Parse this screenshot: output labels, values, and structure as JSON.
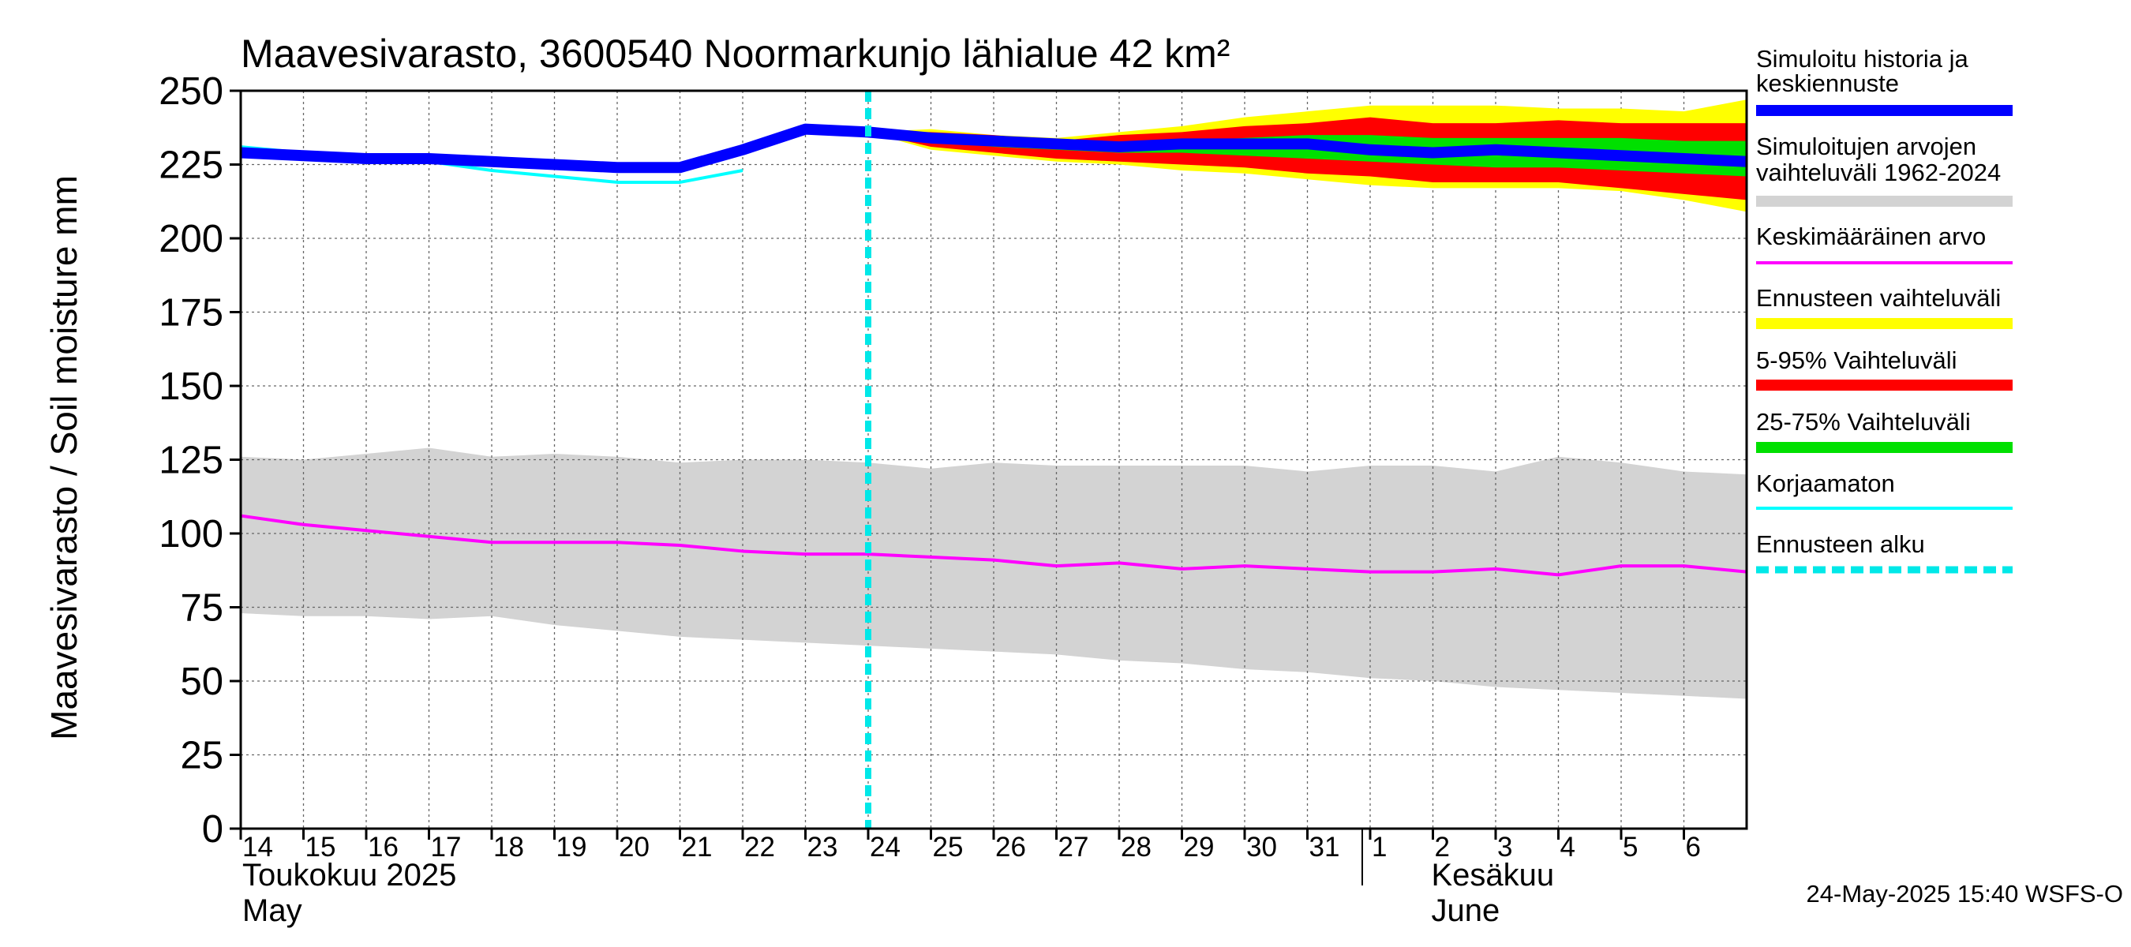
{
  "chart_data": {
    "type": "area",
    "title": "Maavesivarasto, 3600540 Noormarkunjo lähialue 42 km²",
    "ylabel": "Maavesivarasto / Soil moisture   mm",
    "ylim": [
      0,
      250
    ],
    "yticks": [
      0,
      25,
      50,
      75,
      100,
      125,
      150,
      175,
      200,
      225,
      250
    ],
    "grid": true,
    "legend_position": "right",
    "x_day_labels": [
      "14",
      "15",
      "16",
      "17",
      "18",
      "19",
      "20",
      "21",
      "22",
      "23",
      "24",
      "25",
      "26",
      "27",
      "28",
      "29",
      "30",
      "31",
      "1",
      "2",
      "3",
      "4",
      "5",
      "6"
    ],
    "month_labels": [
      {
        "fi": "Toukokuu  2025",
        "en": "May"
      },
      {
        "fi": "Kesäkuu",
        "en": "June"
      }
    ],
    "x_start": "2025-05-14",
    "x_end": "2025-06-07",
    "forecast_start": "2025-05-24",
    "historical_range": {
      "name": "Simuloitujen arvojen vaihteluväli 1962-2024",
      "color": "#d3d3d3",
      "x": [
        "2025-05-14",
        "2025-05-15",
        "2025-05-16",
        "2025-05-17",
        "2025-05-18",
        "2025-05-19",
        "2025-05-20",
        "2025-05-21",
        "2025-05-22",
        "2025-05-23",
        "2025-05-24",
        "2025-05-25",
        "2025-05-26",
        "2025-05-27",
        "2025-05-28",
        "2025-05-29",
        "2025-05-30",
        "2025-05-31",
        "2025-06-01",
        "2025-06-02",
        "2025-06-03",
        "2025-06-04",
        "2025-06-05",
        "2025-06-06",
        "2025-06-07"
      ],
      "upper": [
        126,
        125,
        127,
        129,
        126,
        127,
        126,
        124,
        125,
        125,
        124,
        122,
        124,
        123,
        123,
        123,
        123,
        121,
        123,
        123,
        121,
        126,
        124,
        121,
        120
      ],
      "lower": [
        73,
        72,
        72,
        71,
        72,
        69,
        67,
        65,
        64,
        63,
        62,
        61,
        60,
        59,
        57,
        56,
        54,
        53,
        51,
        50,
        48,
        47,
        46,
        45,
        44
      ]
    },
    "mean": {
      "name": "Keskimääräinen arvo",
      "color": "#ff00ff",
      "x": [
        "2025-05-14",
        "2025-05-15",
        "2025-05-16",
        "2025-05-17",
        "2025-05-18",
        "2025-05-19",
        "2025-05-20",
        "2025-05-21",
        "2025-05-22",
        "2025-05-23",
        "2025-05-24",
        "2025-05-25",
        "2025-05-26",
        "2025-05-27",
        "2025-05-28",
        "2025-05-29",
        "2025-05-30",
        "2025-05-31",
        "2025-06-01",
        "2025-06-02",
        "2025-06-03",
        "2025-06-04",
        "2025-06-05",
        "2025-06-06",
        "2025-06-07"
      ],
      "values": [
        106,
        103,
        101,
        99,
        97,
        97,
        97,
        96,
        94,
        93,
        93,
        92,
        91,
        89,
        90,
        88,
        89,
        88,
        87,
        87,
        88,
        86,
        89,
        89,
        87
      ]
    },
    "forecast_full_range": {
      "name": "Ennusteen vaihteluväli",
      "color": "#ffff00",
      "x": [
        "2025-05-24",
        "2025-05-25",
        "2025-05-26",
        "2025-05-27",
        "2025-05-28",
        "2025-05-29",
        "2025-05-30",
        "2025-05-31",
        "2025-06-01",
        "2025-06-02",
        "2025-06-03",
        "2025-06-04",
        "2025-06-05",
        "2025-06-06",
        "2025-06-07"
      ],
      "upper": [
        236,
        237,
        235,
        234,
        236,
        238,
        241,
        243,
        245,
        245,
        245,
        244,
        244,
        243,
        247
      ],
      "lower": [
        236,
        230,
        228,
        226,
        225,
        223,
        222,
        220,
        218,
        217,
        217,
        217,
        216,
        213,
        209
      ]
    },
    "forecast_5_95": {
      "name": "5-95% Vaihteluväli",
      "color": "#ff0000",
      "x": [
        "2025-05-24",
        "2025-05-25",
        "2025-05-26",
        "2025-05-27",
        "2025-05-28",
        "2025-05-29",
        "2025-05-30",
        "2025-05-31",
        "2025-06-01",
        "2025-06-02",
        "2025-06-03",
        "2025-06-04",
        "2025-06-05",
        "2025-06-06",
        "2025-06-07"
      ],
      "upper": [
        236,
        236,
        235,
        233,
        235,
        236,
        238,
        239,
        241,
        239,
        239,
        240,
        239,
        239,
        239
      ],
      "lower": [
        236,
        231,
        229,
        227,
        226,
        225,
        224,
        222,
        221,
        219,
        219,
        219,
        217,
        215,
        213
      ]
    },
    "forecast_25_75": {
      "name": "25-75% Vaihteluväli",
      "color": "#00e000",
      "x": [
        "2025-05-24",
        "2025-05-25",
        "2025-05-26",
        "2025-05-27",
        "2025-05-28",
        "2025-05-29",
        "2025-05-30",
        "2025-05-31",
        "2025-06-01",
        "2025-06-02",
        "2025-06-03",
        "2025-06-04",
        "2025-06-05",
        "2025-06-06",
        "2025-06-07"
      ],
      "upper": [
        236,
        235,
        233,
        232,
        232,
        233,
        234,
        235,
        235,
        234,
        234,
        234,
        234,
        233,
        233
      ],
      "lower": [
        236,
        233,
        231,
        230,
        229,
        229,
        228,
        227,
        226,
        225,
        224,
        224,
        223,
        222,
        221
      ]
    },
    "simulated": {
      "name": "Simuloitu historia ja keskiennuste",
      "color": "#0000ff",
      "x": [
        "2025-05-14",
        "2025-05-15",
        "2025-05-16",
        "2025-05-17",
        "2025-05-18",
        "2025-05-19",
        "2025-05-20",
        "2025-05-21",
        "2025-05-22",
        "2025-05-23",
        "2025-05-24",
        "2025-05-25",
        "2025-05-26",
        "2025-05-27",
        "2025-05-28",
        "2025-05-29",
        "2025-05-30",
        "2025-05-31",
        "2025-06-01",
        "2025-06-02",
        "2025-06-03",
        "2025-06-04",
        "2025-06-05",
        "2025-06-06",
        "2025-06-07"
      ],
      "values": [
        229,
        228,
        227,
        227,
        226,
        225,
        224,
        224,
        230,
        237,
        236,
        234,
        233,
        232,
        231,
        232,
        232,
        232,
        230,
        229,
        230,
        229,
        228,
        227,
        226
      ]
    },
    "uncorrected": {
      "name": "Korjaamaton",
      "color": "#00ffff",
      "x": [
        "2025-05-14",
        "2025-05-15",
        "2025-05-16",
        "2025-05-17",
        "2025-05-18",
        "2025-05-19",
        "2025-05-20",
        "2025-05-21",
        "2025-05-22"
      ],
      "values": [
        231,
        229,
        227,
        226,
        223,
        221,
        219,
        219,
        223
      ]
    },
    "forecast_start_marker": {
      "name": "Ennusteen alku",
      "color": "#00e8e8"
    },
    "legend": [
      {
        "label": "Simuloitu historia ja",
        "label2": "keskiennuste",
        "color": "#0000ff",
        "style": "line"
      },
      {
        "label": "Simuloitujen arvojen",
        "label2": "vaihteluväli 1962-2024",
        "color": "#d3d3d3",
        "style": "line"
      },
      {
        "label": "Keskimääräinen arvo",
        "color": "#ff00ff",
        "style": "thin"
      },
      {
        "label": "Ennusteen vaihteluväli",
        "color": "#ffff00",
        "style": "line"
      },
      {
        "label": "5-95% Vaihteluväli",
        "color": "#ff0000",
        "style": "line"
      },
      {
        "label": "25-75% Vaihteluväli",
        "color": "#00e000",
        "style": "line"
      },
      {
        "label": "Korjaamaton",
        "color": "#00ffff",
        "style": "thin"
      },
      {
        "label": "Ennusteen alku",
        "color": "#00e8e8",
        "style": "dashed"
      }
    ],
    "footer": "24-May-2025 15:40 WSFS-O"
  }
}
